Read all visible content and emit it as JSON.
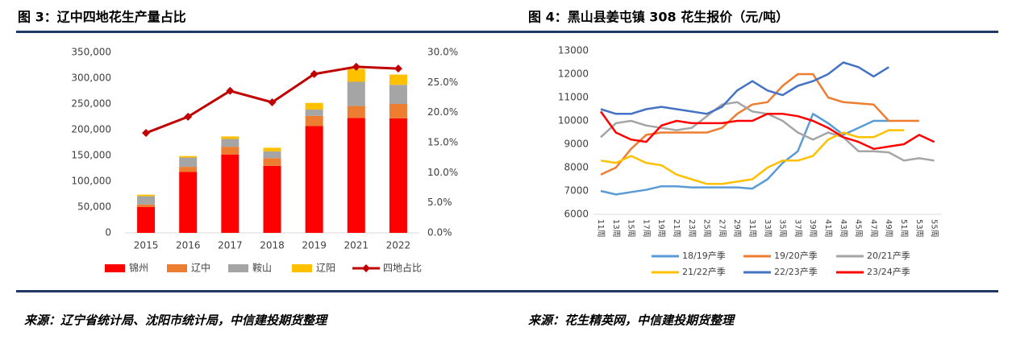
{
  "chart_data": [
    {
      "type": "bar",
      "stacked": true,
      "title": "图 3：辽中四地花生产量占比",
      "note": "来源：辽宁省统计局、沈阳市统计局，中信建投期货整理",
      "categories": [
        "2015",
        "2016",
        "2017",
        "2018",
        "2019",
        "2021",
        "2022"
      ],
      "series": [
        {
          "name": "锦州",
          "color": "#ff0000",
          "values": [
            50000,
            118000,
            152000,
            130000,
            207000,
            223000,
            222000
          ]
        },
        {
          "name": "辽中",
          "color": "#ed7d31",
          "values": [
            5000,
            10000,
            15000,
            15000,
            20000,
            23000,
            28000
          ]
        },
        {
          "name": "鞍山",
          "color": "#a5a5a5",
          "values": [
            16000,
            18000,
            15000,
            13000,
            12000,
            47000,
            37000
          ]
        },
        {
          "name": "辽阳",
          "color": "#ffc000",
          "values": [
            3000,
            3000,
            5000,
            7000,
            13000,
            25000,
            20000
          ]
        },
        {
          "name": "四地占比",
          "color": "#c00000",
          "type": "line",
          "axis": "y2",
          "values": [
            16.6,
            19.3,
            23.6,
            21.7,
            26.4,
            27.6,
            27.3
          ]
        }
      ],
      "ylim": [
        0,
        350000
      ],
      "yticks": [
        0,
        {
          "value": 50000,
          "label": "50,000"
        },
        {
          "value": 100000,
          "label": "100,000"
        },
        {
          "value": 150000,
          "label": "150,000"
        },
        {
          "value": 200000,
          "label": "200,000"
        },
        {
          "value": 250000,
          "label": "250,000"
        },
        {
          "value": 300000,
          "label": "300,000"
        },
        {
          "value": 350000,
          "label": "350,000"
        }
      ],
      "y2lim": [
        0,
        30
      ],
      "y2ticks": [
        {
          "value": 0,
          "label": "0.0%"
        },
        {
          "value": 5,
          "label": "5.0%"
        },
        {
          "value": 10,
          "label": "10.0%"
        },
        {
          "value": 15,
          "label": "15.0%"
        },
        {
          "value": 20,
          "label": "20.0%"
        },
        {
          "value": 25,
          "label": "25.0%"
        },
        {
          "value": 30,
          "label": "30.0%"
        }
      ],
      "legend": "bottom"
    },
    {
      "type": "line",
      "title": "图 4：黑山县姜屯镇 308 花生报价（元/吨）",
      "note": "来源：花生精英网，中信建投期货整理",
      "categories": [
        "11周",
        "13周",
        "15周",
        "17周",
        "19周",
        "21周",
        "23周",
        "25周",
        "27周",
        "29周",
        "31周",
        "33周",
        "35周",
        "37周",
        "39周",
        "41周",
        "43周",
        "45周",
        "47周",
        "49周",
        "51周",
        "53周",
        "55周"
      ],
      "series": [
        {
          "name": "18/19产季",
          "color": "#5b9bd5",
          "values": [
            7000,
            6850,
            6950,
            7050,
            7200,
            7200,
            7150,
            7150,
            7150,
            7150,
            7100,
            7500,
            8200,
            8700,
            10300,
            9900,
            9400,
            9700,
            10000,
            10000,
            null,
            null,
            null
          ]
        },
        {
          "name": "19/20产季",
          "color": "#ed7d31",
          "values": [
            7700,
            8000,
            8800,
            9400,
            9500,
            9500,
            9500,
            9500,
            9700,
            10300,
            10700,
            10800,
            11500,
            12000,
            12000,
            11000,
            10800,
            10750,
            10700,
            10000,
            10000,
            10000,
            null
          ]
        },
        {
          "name": "20/21产季",
          "color": "#a5a5a5",
          "values": [
            9300,
            9900,
            10000,
            9800,
            9700,
            9600,
            9700,
            10200,
            10700,
            10800,
            10400,
            10300,
            10000,
            9500,
            9200,
            9500,
            9300,
            8700,
            8700,
            8650,
            8300,
            8400,
            8300
          ]
        },
        {
          "name": "21/22产季",
          "color": "#ffc000",
          "values": [
            8300,
            8200,
            8500,
            8200,
            8100,
            7700,
            7500,
            7300,
            7300,
            7400,
            7500,
            8000,
            8300,
            8300,
            8500,
            9200,
            9500,
            9300,
            9300,
            9600,
            9600,
            null,
            null
          ]
        },
        {
          "name": "22/23产季",
          "color": "#4472c4",
          "values": [
            10500,
            10300,
            10300,
            10500,
            10600,
            10500,
            10400,
            10300,
            10600,
            11300,
            11700,
            11300,
            11100,
            11500,
            11700,
            12000,
            12500,
            12300,
            11900,
            12300,
            null,
            null,
            null
          ]
        },
        {
          "name": "23/24产季",
          "color": "#ff0000",
          "values": [
            10400,
            9500,
            9200,
            9100,
            9800,
            10000,
            9900,
            9900,
            9900,
            10000,
            10000,
            10300,
            10300,
            10200,
            10000,
            9700,
            9300,
            9100,
            8800,
            8900,
            9000,
            9400,
            9100
          ]
        }
      ],
      "ylim": [
        6000,
        13000
      ],
      "yticks": [
        6000,
        7000,
        8000,
        9000,
        10000,
        11000,
        12000,
        13000
      ],
      "legend": "bottom"
    }
  ]
}
